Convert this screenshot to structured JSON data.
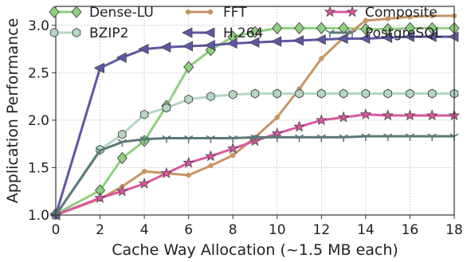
{
  "chart_data": {
    "type": "line",
    "title": "",
    "xlabel": "Cache Way Allocation (~1.5 MB each)",
    "ylabel": "Application Performance",
    "xlim": [
      0,
      18
    ],
    "ylim": [
      1.0,
      3.2
    ],
    "xticks": [
      0,
      2,
      4,
      6,
      8,
      10,
      12,
      14,
      16,
      18
    ],
    "yticks": [
      1.0,
      1.5,
      2.0,
      2.5,
      3.0
    ],
    "ytick_labels": [
      "1.0",
      "1.5",
      "2.0",
      "2.5",
      "3.0"
    ],
    "grid": true,
    "legend_position": "top",
    "legend_columns": 3,
    "series": [
      {
        "name": "Dense-LU",
        "color": "#8fcf7f",
        "marker": "diamond",
        "x": [
          0,
          2,
          3,
          4,
          5,
          6,
          7,
          8,
          9,
          10,
          11,
          12,
          13,
          14,
          15,
          16,
          17,
          18
        ],
        "values": [
          1.01,
          1.26,
          1.6,
          1.78,
          2.15,
          2.56,
          2.74,
          2.88,
          2.93,
          2.97,
          2.97,
          2.97,
          2.97,
          2.96,
          2.96,
          2.97,
          2.97,
          2.97
        ]
      },
      {
        "name": "FFT",
        "color": "#c79565",
        "marker": "dot",
        "x": [
          0,
          2,
          3,
          4,
          5,
          6,
          7,
          8,
          9,
          10,
          11,
          12,
          13,
          14,
          15,
          16,
          17,
          18
        ],
        "values": [
          1.0,
          1.17,
          1.3,
          1.46,
          1.44,
          1.42,
          1.52,
          1.63,
          1.82,
          2.03,
          2.33,
          2.65,
          2.87,
          3.05,
          3.07,
          3.09,
          3.1,
          3.1
        ]
      },
      {
        "name": "Composite",
        "color": "#dc57a0",
        "marker": "star",
        "x": [
          0,
          2,
          3,
          4,
          5,
          6,
          7,
          8,
          9,
          10,
          11,
          12,
          13,
          14,
          15,
          16,
          17,
          18
        ],
        "values": [
          1.0,
          1.18,
          1.25,
          1.33,
          1.44,
          1.55,
          1.62,
          1.7,
          1.78,
          1.86,
          1.93,
          2.0,
          2.03,
          2.06,
          2.05,
          2.05,
          2.05,
          2.05
        ]
      },
      {
        "name": "BZIP2",
        "color": "#b5d6c3",
        "marker": "hexagon",
        "x": [
          0,
          2,
          3,
          4,
          5,
          6,
          7,
          8,
          9,
          10,
          11,
          12,
          13,
          14,
          15,
          16,
          17,
          18
        ],
        "values": [
          1.0,
          1.69,
          1.85,
          2.06,
          2.13,
          2.22,
          2.25,
          2.27,
          2.28,
          2.28,
          2.28,
          2.28,
          2.28,
          2.28,
          2.28,
          2.28,
          2.28,
          2.28
        ]
      },
      {
        "name": "H.264",
        "color": "#5d57a3",
        "marker": "triangle-left",
        "x": [
          0,
          2,
          3,
          4,
          5,
          6,
          7,
          8,
          9,
          10,
          11,
          12,
          13,
          14,
          15,
          16,
          17,
          18
        ],
        "values": [
          1.0,
          2.55,
          2.66,
          2.75,
          2.77,
          2.78,
          2.79,
          2.81,
          2.82,
          2.83,
          2.84,
          2.85,
          2.86,
          2.86,
          2.87,
          2.88,
          2.88,
          2.88
        ]
      },
      {
        "name": "PostgreSQL",
        "color": "#5b7a78",
        "marker": "tri",
        "x": [
          0,
          2,
          3,
          4,
          5,
          6,
          7,
          8,
          9,
          10,
          11,
          12,
          13,
          14,
          15,
          16,
          17,
          18
        ],
        "values": [
          1.0,
          1.68,
          1.77,
          1.8,
          1.81,
          1.81,
          1.81,
          1.81,
          1.82,
          1.82,
          1.82,
          1.82,
          1.82,
          1.83,
          1.83,
          1.83,
          1.83,
          1.83
        ]
      }
    ]
  }
}
